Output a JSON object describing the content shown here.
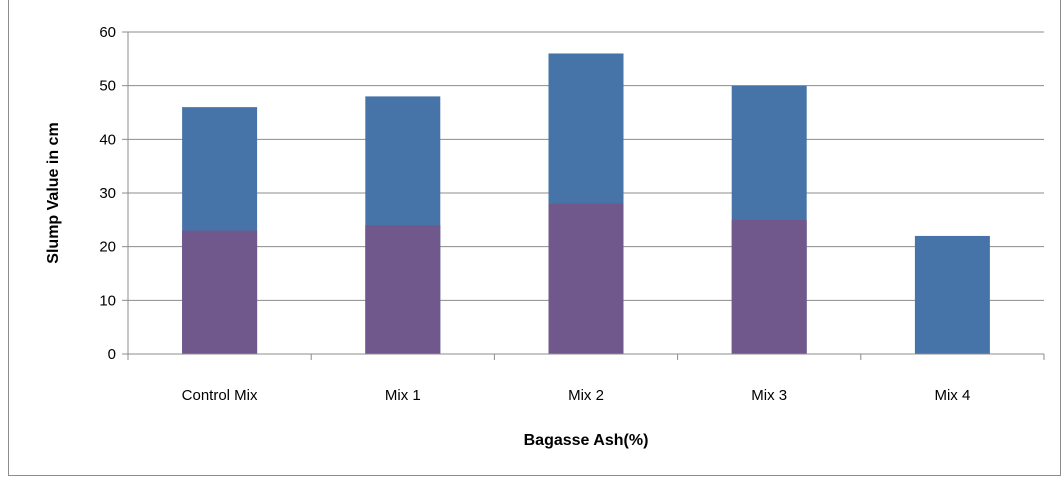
{
  "chart_data": {
    "type": "bar",
    "stacked": false,
    "overlaid": true,
    "title": "",
    "xlabel": "Bagasse Ash(%)",
    "ylabel": "Slump Value in cm",
    "categories": [
      "Control Mix",
      "Mix 1",
      "Mix 2",
      "Mix 3",
      "Mix 4"
    ],
    "ylim": [
      0,
      60
    ],
    "yticks": [
      0,
      10,
      20,
      30,
      40,
      50,
      60
    ],
    "grid": true,
    "legend": "none",
    "series": [
      {
        "values": [
          46,
          48,
          56,
          50,
          22
        ],
        "color": "#4674a8"
      },
      {
        "values": [
          23,
          24,
          28,
          25,
          0
        ],
        "color": "#70588c"
      }
    ]
  }
}
